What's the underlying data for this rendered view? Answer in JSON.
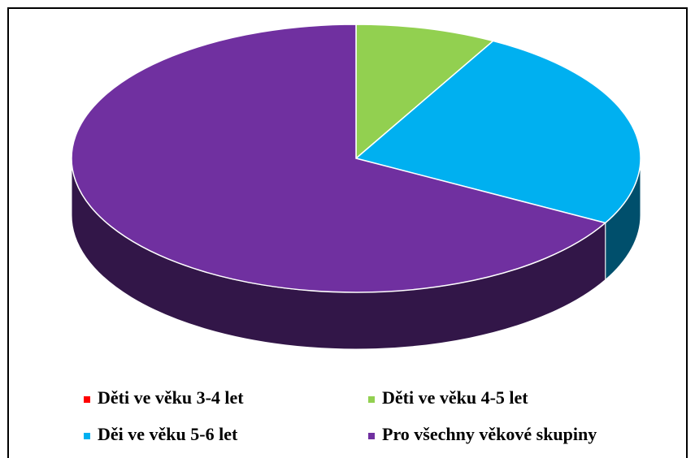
{
  "chart_data": {
    "type": "pie3d",
    "categories": [
      "Děti ve věku 3-4 let",
      "Děti ve věku 4-5 let",
      "Děi ve věku 5-6 let",
      "Pro všechny věkové skupiny"
    ],
    "values": [
      0,
      8,
      25,
      67
    ],
    "colors": [
      "#ff0000",
      "#92d050",
      "#00b0f0",
      "#7030a0"
    ],
    "legend": "bottom"
  }
}
